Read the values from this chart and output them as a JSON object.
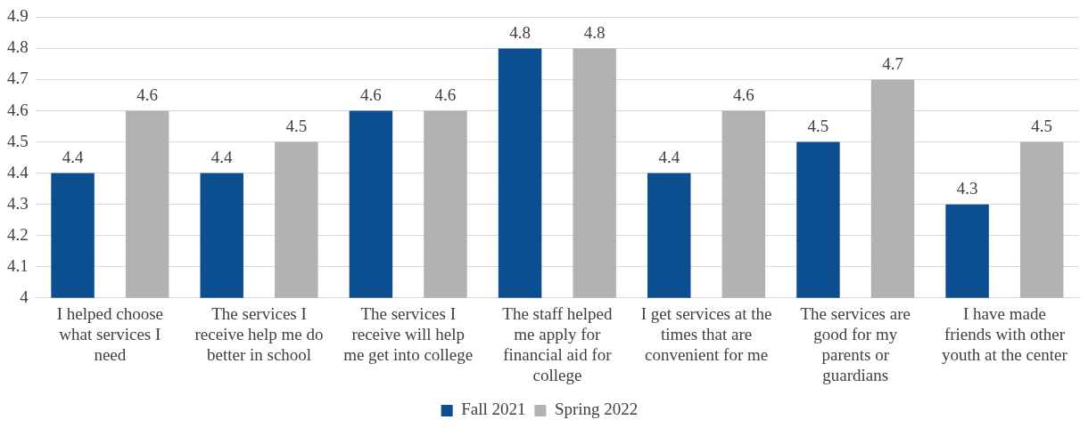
{
  "chart_data": {
    "type": "bar",
    "categories": [
      "I helped choose what services I need",
      "The services I receive help me do better in school",
      "The services I receive will help me get into college",
      "The staff helped me apply for financial aid for college",
      "I get services at the times that are convenient for me",
      "The services are good for my parents or guardians",
      "I have made friends with other youth at the center"
    ],
    "series": [
      {
        "name": "Fall 2021",
        "color": "#0b4f91",
        "values": [
          4.4,
          4.4,
          4.6,
          4.8,
          4.4,
          4.5,
          4.3
        ]
      },
      {
        "name": "Spring 2022",
        "color": "#b2b2b2",
        "values": [
          4.6,
          4.5,
          4.6,
          4.8,
          4.6,
          4.7,
          4.5
        ]
      }
    ],
    "ylim": [
      4,
      4.9
    ],
    "yticks": [
      4,
      4.1,
      4.2,
      4.3,
      4.4,
      4.5,
      4.6,
      4.7,
      4.8,
      4.9
    ],
    "grid": "y",
    "legend": "bottom",
    "data_labels": true
  }
}
